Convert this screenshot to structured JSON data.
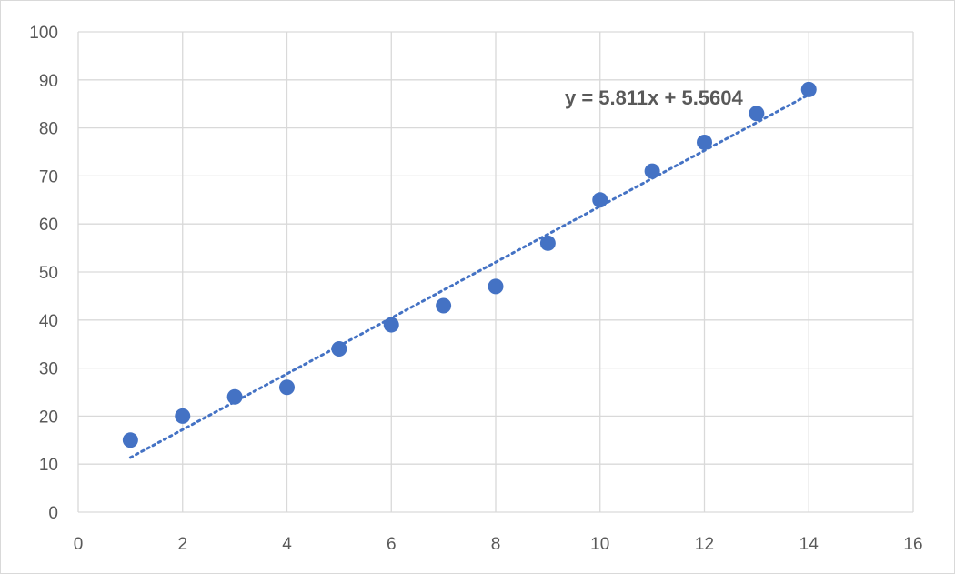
{
  "chart_data": {
    "type": "scatter",
    "title": "",
    "xlabel": "",
    "ylabel": "",
    "xlim": [
      0,
      16
    ],
    "ylim": [
      0,
      100
    ],
    "x_ticks": [
      0,
      2,
      4,
      6,
      8,
      10,
      12,
      14,
      16
    ],
    "y_ticks": [
      0,
      10,
      20,
      30,
      40,
      50,
      60,
      70,
      80,
      90,
      100
    ],
    "grid": true,
    "legend": "none",
    "series": [
      {
        "x": [
          1,
          2,
          3,
          4,
          5,
          6,
          7,
          8,
          9,
          10,
          11,
          12,
          13,
          14
        ],
        "y": [
          15,
          20,
          24,
          26,
          34,
          39,
          43,
          47,
          56,
          65,
          71,
          77,
          83,
          88
        ],
        "color": "#4472c4"
      }
    ],
    "trendline": {
      "type": "linear",
      "slope": 5.811,
      "intercept": 5.5604,
      "x_range": [
        1,
        14
      ],
      "style": "dotted",
      "color": "#4472c4",
      "equation_label": "y = 5.811x + 5.5604"
    }
  }
}
